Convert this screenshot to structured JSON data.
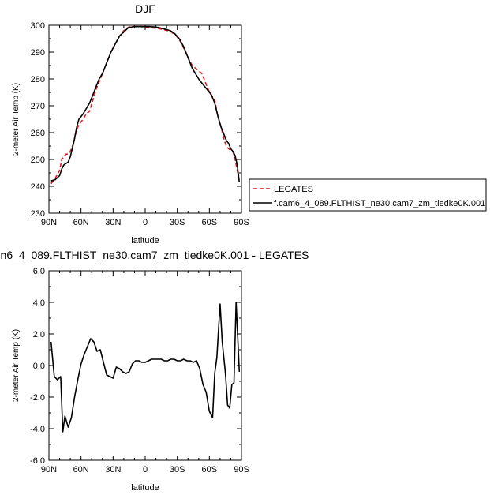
{
  "chart_data": [
    {
      "type": "line",
      "title": "DJF",
      "xlabel": "latitude",
      "ylabel": "2-meter Air Temp (K)",
      "xlim": [
        90,
        -90
      ],
      "ylim": [
        230,
        300
      ],
      "x_ticks": [
        90,
        60,
        30,
        0,
        -30,
        -60,
        -90
      ],
      "x_tick_labels": [
        "90N",
        "60N",
        "30N",
        "0",
        "30S",
        "60S",
        "90S"
      ],
      "y_ticks": [
        230,
        240,
        250,
        260,
        270,
        280,
        290,
        300
      ],
      "y_tick_labels": [
        "230",
        "240",
        "250",
        "260",
        "270",
        "280",
        "290",
        "300"
      ],
      "legend_placement": "right",
      "series": [
        {
          "name": "LEGATES",
          "color": "#e41a1c",
          "dash": "dashed",
          "x": [
            88,
            84,
            80,
            78,
            76,
            74,
            72,
            70,
            67,
            64,
            62,
            60,
            58,
            55,
            52,
            49,
            46,
            43,
            40,
            36,
            32,
            28,
            24,
            20,
            16,
            12,
            8,
            4,
            0,
            -4,
            -8,
            -12,
            -16,
            -20,
            -24,
            -28,
            -32,
            -36,
            -40,
            -44,
            -47,
            -50,
            -53,
            -56,
            -59,
            -62,
            -65,
            -68,
            -71,
            -74,
            -76,
            -78,
            -80,
            -82,
            -84,
            -86,
            -88
          ],
          "y": [
            241,
            243,
            246,
            250,
            251,
            252,
            252,
            253,
            256,
            261,
            263,
            264,
            265,
            267,
            268,
            272,
            276,
            279,
            282,
            286,
            290,
            293,
            296,
            298,
            299.2,
            299.6,
            299.5,
            299.5,
            299.3,
            299.2,
            299,
            298.8,
            298.5,
            298.1,
            297.6,
            296.5,
            294.6,
            291.5,
            288,
            285,
            284,
            283,
            282,
            279,
            276,
            274,
            272,
            266,
            262,
            257,
            255,
            254,
            253.5,
            253,
            250,
            246,
            242
          ]
        },
        {
          "name": "f.cam6_4_089.FLTHIST_ne30.cam7_zm_tiedke0K.001",
          "color": "#000000",
          "dash": "solid",
          "x": [
            88,
            84,
            80,
            78,
            76,
            74,
            72,
            70,
            67,
            64,
            62,
            60,
            58,
            55,
            52,
            49,
            46,
            43,
            40,
            36,
            32,
            28,
            24,
            20,
            16,
            12,
            8,
            4,
            0,
            -4,
            -8,
            -12,
            -16,
            -20,
            -24,
            -28,
            -32,
            -36,
            -40,
            -44,
            -47,
            -50,
            -53,
            -56,
            -59,
            -62,
            -65,
            -68,
            -71,
            -74,
            -76,
            -78,
            -80,
            -82,
            -84,
            -86,
            -88
          ],
          "y": [
            242,
            242.5,
            244,
            246.5,
            248,
            248.5,
            249,
            251,
            256,
            262,
            265,
            266,
            267,
            269,
            271,
            274,
            277,
            280,
            282,
            286,
            290,
            293,
            296,
            297.5,
            299,
            299.4,
            299.5,
            299.5,
            299.5,
            299.5,
            299.4,
            299.2,
            298.8,
            298.4,
            297.9,
            296.7,
            294.9,
            292,
            288,
            284,
            282,
            280,
            278.5,
            277,
            275.5,
            274,
            271,
            266,
            262,
            259,
            257,
            256,
            254,
            253,
            251.5,
            248,
            241.5
          ]
        }
      ]
    },
    {
      "type": "line",
      "title": "n6_4_089.FLTHIST_ne30.cam7_zm_tiedke0K.001 - LEGATES",
      "xlabel": "latitude",
      "ylabel": "2-meter Air Temp (K)",
      "xlim": [
        90,
        -90
      ],
      "ylim": [
        -6,
        6
      ],
      "x_ticks": [
        90,
        60,
        30,
        0,
        -30,
        -60,
        -90
      ],
      "x_tick_labels": [
        "90N",
        "60N",
        "30N",
        "0",
        "30S",
        "60S",
        "90S"
      ],
      "y_ticks": [
        -6,
        -4,
        -2,
        0,
        2,
        4,
        6
      ],
      "y_tick_labels": [
        "-6.0",
        "-4.0",
        "-2.0",
        "0.0",
        "2.0",
        "4.0",
        "6.0"
      ],
      "series": [
        {
          "name": "",
          "color": "#000000",
          "dash": "solid",
          "x": [
            88,
            85,
            82,
            79,
            77,
            75,
            72,
            69,
            66,
            63,
            60,
            57,
            54,
            51,
            48,
            45,
            42,
            39,
            36,
            33,
            30,
            27,
            24,
            21,
            18,
            15,
            12,
            9,
            6,
            3,
            0,
            -3,
            -6,
            -9,
            -12,
            -15,
            -18,
            -21,
            -24,
            -27,
            -30,
            -33,
            -36,
            -39,
            -42,
            -45,
            -48,
            -51,
            -54,
            -57,
            -60,
            -63,
            -65,
            -67,
            -70,
            -72,
            -75,
            -77,
            -79,
            -81,
            -83,
            -85,
            -88
          ],
          "y": [
            1.5,
            -0.7,
            -0.9,
            -0.7,
            -4.2,
            -3.2,
            -3.9,
            -3.3,
            -2.0,
            -0.9,
            0.1,
            0.7,
            1.2,
            1.7,
            1.5,
            0.9,
            1.0,
            0.2,
            -0.6,
            -0.7,
            -0.8,
            -0.1,
            -0.2,
            -0.4,
            -0.5,
            -0.4,
            0.1,
            0.3,
            0.3,
            0.2,
            0.2,
            0.3,
            0.4,
            0.4,
            0.4,
            0.4,
            0.3,
            0.3,
            0.4,
            0.4,
            0.3,
            0.3,
            0.4,
            0.3,
            0.3,
            0.2,
            0.3,
            -0.2,
            -1.2,
            -1.7,
            -2.9,
            -3.3,
            -0.5,
            0.5,
            3.9,
            1.5,
            -0.5,
            -2.5,
            -2.7,
            -1.2,
            -1.1,
            4.0,
            -0.4
          ]
        }
      ]
    }
  ]
}
